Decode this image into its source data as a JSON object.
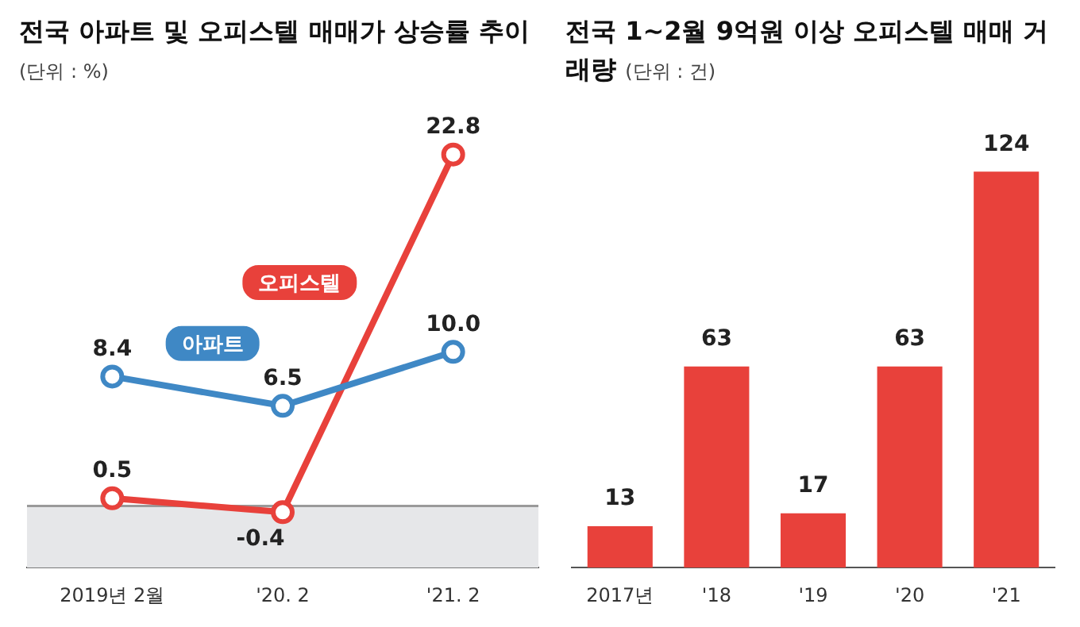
{
  "chart_data": [
    {
      "type": "line",
      "title": "전국 아파트 및 오피스텔 매매가 상승률 추이",
      "subtitle": "(단위 : %)",
      "categories": [
        "2019년 2월",
        "'20. 2",
        "'21. 2"
      ],
      "series": [
        {
          "name": "아파트",
          "color": "#3f88c5",
          "values": [
            8.4,
            6.5,
            10.0
          ],
          "value_labels": [
            "8.4",
            "6.5",
            "10.0"
          ]
        },
        {
          "name": "오피스텔",
          "color": "#e8413b",
          "values": [
            0.5,
            -0.4,
            22.8
          ],
          "value_labels": [
            "0.5",
            "-0.4",
            "22.8"
          ]
        }
      ],
      "tick_labels": "x",
      "marker": "circle",
      "line_style": "solid",
      "bands": [
        {
          "axis": "y",
          "from": -4,
          "to": 0,
          "color": "#e6e7e9"
        }
      ],
      "ref_lines": [
        {
          "axis": "y",
          "value": 0,
          "color": "#9a9a9a"
        }
      ]
    },
    {
      "type": "bar",
      "title": "전국 1~2월 9억원 이상 오피스텔 매매 거래량",
      "subtitle": "(단위 : 건)",
      "categories": [
        "2017년",
        "'18",
        "'19",
        "'20",
        "'21"
      ],
      "values": [
        13,
        63,
        17,
        63,
        124
      ],
      "color": "#e8413b",
      "tick_labels": "x",
      "data_labels": true
    }
  ]
}
